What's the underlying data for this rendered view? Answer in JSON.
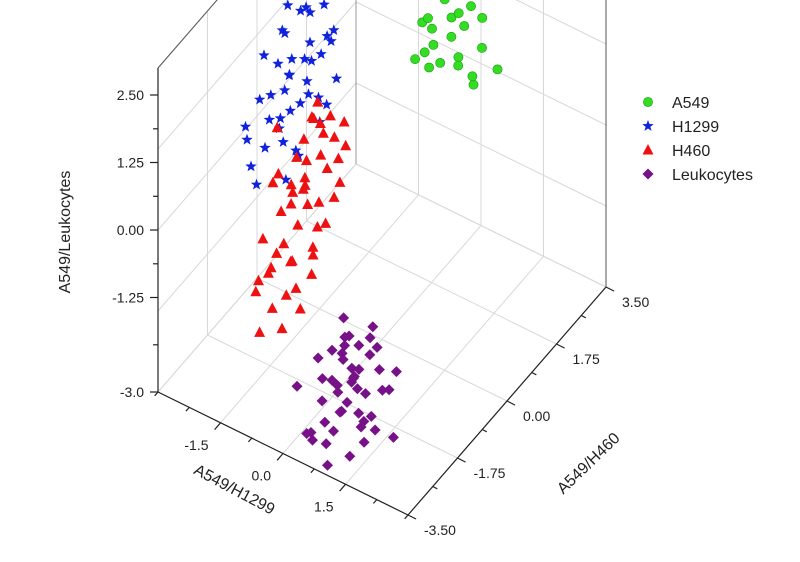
{
  "chart_data": {
    "type": "scatter",
    "projection": "3d",
    "title": "",
    "xlabel": "A549/H1299",
    "ylabel": "A549/H460",
    "zlabel": "A549/Leukocytes",
    "xlim": [
      -3.0,
      3.0
    ],
    "ylim": [
      -3.5,
      3.5
    ],
    "zlim": [
      -3.0,
      3.0
    ],
    "x_ticks": [
      "-1.5",
      "0.0",
      "1.5"
    ],
    "y_ticks": [
      "-3.50",
      "-1.75",
      "0.00",
      "1.75",
      "3.50"
    ],
    "z_ticks": [
      "-3.0",
      "-1.25",
      "0.00",
      "1.25",
      "2.50"
    ],
    "grid": true,
    "legend_position": "right",
    "series": [
      {
        "name": "A549",
        "marker": "circle",
        "color": "#33dd22",
        "points": [
          [
            -0.8,
            3.2,
            1.4
          ],
          [
            -0.7,
            3.3,
            1.6
          ],
          [
            -0.9,
            3.0,
            1.3
          ],
          [
            -0.6,
            3.1,
            1.2
          ],
          [
            -0.5,
            3.0,
            1.5
          ],
          [
            -0.3,
            2.9,
            1.1
          ],
          [
            -0.4,
            3.3,
            0.9
          ],
          [
            -0.7,
            2.8,
            0.8
          ],
          [
            -0.8,
            2.6,
            1.0
          ],
          [
            -1.0,
            3.1,
            0.7
          ],
          [
            -0.6,
            2.7,
            0.6
          ],
          [
            -0.2,
            3.2,
            0.8
          ],
          [
            0.1,
            3.0,
            1.4
          ],
          [
            0.3,
            3.1,
            1.2
          ],
          [
            0.5,
            2.8,
            0.9
          ],
          [
            -0.9,
            2.9,
            1.7
          ],
          [
            0.0,
            2.7,
            0.6
          ],
          [
            0.4,
            3.3,
            1.8
          ],
          [
            -0.3,
            2.5,
            0.5
          ],
          [
            -0.1,
            2.6,
            1.0
          ],
          [
            0.2,
            2.4,
            0.7
          ],
          [
            -0.5,
            2.4,
            0.4
          ],
          [
            0.6,
            3.2,
            0.3
          ],
          [
            -0.7,
            2.2,
            0.6
          ],
          [
            -0.4,
            2.1,
            0.9
          ],
          [
            0.5,
            2.5,
            0.4
          ],
          [
            0.2,
            2.9,
            0.2
          ]
        ]
      },
      {
        "name": "H1299",
        "marker": "star",
        "color": "#1122dd",
        "points": [
          [
            -2.4,
            0.9,
            2.5
          ],
          [
            -2.6,
            0.5,
            1.9
          ],
          [
            -2.2,
            0.7,
            1.8
          ],
          [
            -2.0,
            0.4,
            1.5
          ],
          [
            -2.8,
            0.6,
            1.3
          ],
          [
            -2.5,
            1.0,
            1.6
          ],
          [
            -2.3,
            0.2,
            1.2
          ],
          [
            -2.1,
            0.6,
            1.0
          ],
          [
            -2.7,
            0.3,
            0.9
          ],
          [
            -2.4,
            0.8,
            0.8
          ],
          [
            -2.9,
            0.1,
            1.1
          ],
          [
            -2.0,
            0.9,
            1.9
          ],
          [
            -1.8,
            0.5,
            1.3
          ],
          [
            -1.9,
            0.2,
            0.7
          ],
          [
            -2.6,
            -0.1,
            0.6
          ],
          [
            -2.2,
            0.0,
            0.4
          ],
          [
            -2.5,
            -0.3,
            0.3
          ],
          [
            -2.8,
            -0.2,
            0.5
          ],
          [
            -2.1,
            -0.4,
            0.1
          ],
          [
            -1.7,
            0.3,
            0.2
          ],
          [
            -2.4,
            -0.6,
            0.0
          ],
          [
            -2.9,
            -0.5,
            -0.1
          ],
          [
            -2.0,
            -0.1,
            -0.2
          ],
          [
            -2.6,
            -0.8,
            -0.3
          ],
          [
            -1.9,
            -0.6,
            -0.4
          ],
          [
            -2.3,
            1.2,
            2.2
          ],
          [
            -2.0,
            1.1,
            2.0
          ],
          [
            -1.7,
            0.8,
            1.6
          ],
          [
            -2.7,
            1.1,
            1.4
          ],
          [
            -1.8,
            0.0,
            1.1
          ],
          [
            -2.2,
            -0.2,
            0.9
          ],
          [
            -2.5,
            0.4,
            0.7
          ],
          [
            -1.6,
            0.4,
            0.5
          ],
          [
            -2.0,
            0.7,
            0.3
          ],
          [
            -2.4,
            0.1,
            1.7
          ],
          [
            -1.9,
            1.0,
            1.2
          ],
          [
            -2.1,
            -0.5,
            0.6
          ],
          [
            -1.8,
            -0.3,
            -0.1
          ],
          [
            -2.3,
            0.5,
            0.2
          ],
          [
            -2.6,
            0.2,
            -0.2
          ],
          [
            -2.9,
            1.0,
            0.2
          ],
          [
            -2.8,
            -0.7,
            0.3
          ],
          [
            -2.2,
            1.3,
            1.0
          ],
          [
            -1.5,
            0.6,
            0.9
          ],
          [
            -2.4,
            -0.9,
            -0.5
          ]
        ]
      },
      {
        "name": "H460",
        "marker": "triangle",
        "color": "#ee1111",
        "points": [
          [
            -0.8,
            -1.0,
            1.3
          ],
          [
            -0.6,
            -0.8,
            1.0
          ],
          [
            -1.0,
            -0.6,
            0.8
          ],
          [
            -0.5,
            -1.2,
            0.7
          ],
          [
            -0.9,
            -1.4,
            0.5
          ],
          [
            -1.2,
            -0.9,
            0.4
          ],
          [
            -0.7,
            -1.6,
            0.2
          ],
          [
            -1.1,
            -1.1,
            0.1
          ],
          [
            -0.4,
            -0.9,
            0.3
          ],
          [
            -0.8,
            -1.8,
            -0.1
          ],
          [
            -1.3,
            -1.3,
            -0.2
          ],
          [
            -0.6,
            -1.4,
            -0.3
          ],
          [
            -1.0,
            -2.0,
            -0.4
          ],
          [
            -0.5,
            -1.7,
            -0.6
          ],
          [
            -1.4,
            -0.7,
            0.6
          ],
          [
            -0.3,
            -1.1,
            0.9
          ],
          [
            -0.9,
            -0.5,
            1.1
          ],
          [
            -1.2,
            -1.8,
            0.0
          ],
          [
            -0.7,
            -2.2,
            -0.5
          ],
          [
            -1.5,
            -1.0,
            -0.1
          ],
          [
            -0.4,
            -1.9,
            -0.8
          ],
          [
            -1.1,
            -2.3,
            -0.7
          ],
          [
            -0.6,
            -2.5,
            -0.9
          ],
          [
            -1.3,
            -2.1,
            -1.0
          ],
          [
            -0.2,
            -1.4,
            0.4
          ],
          [
            -1.6,
            -1.5,
            0.2
          ],
          [
            -0.8,
            -2.7,
            -1.1
          ],
          [
            -1.0,
            -0.8,
            1.5
          ],
          [
            -0.5,
            -0.6,
            1.2
          ],
          [
            -1.4,
            -1.6,
            0.5
          ],
          [
            -0.9,
            -2.4,
            -0.3
          ],
          [
            -0.3,
            -2.0,
            -0.2
          ],
          [
            -1.2,
            -2.6,
            -0.8
          ],
          [
            -0.7,
            -1.2,
            0.0
          ],
          [
            -1.5,
            -2.0,
            -0.5
          ],
          [
            -0.4,
            -2.3,
            -1.2
          ],
          [
            -1.1,
            -1.4,
            0.8
          ],
          [
            -0.6,
            -0.4,
            0.6
          ],
          [
            -1.3,
            -0.5,
            0.9
          ],
          [
            -0.8,
            -1.3,
            1.6
          ],
          [
            -1.7,
            -1.2,
            1.0
          ],
          [
            -0.5,
            -2.8,
            -1.3
          ],
          [
            -1.0,
            -1.7,
            -0.9
          ],
          [
            -1.4,
            -2.4,
            -1.2
          ],
          [
            -0.2,
            -1.7,
            0.1
          ],
          [
            -0.9,
            -3.0,
            -1.4
          ],
          [
            -1.2,
            -0.4,
            0.2
          ],
          [
            -0.6,
            -1.9,
            0.7
          ],
          [
            -1.6,
            -0.8,
            -0.4
          ],
          [
            -0.3,
            -2.6,
            -0.6
          ]
        ]
      },
      {
        "name": "Leukocytes",
        "marker": "diamond",
        "color": "#771188",
        "points": [
          [
            0.6,
            -2.2,
            -1.4
          ],
          [
            0.8,
            -2.0,
            -1.6
          ],
          [
            0.5,
            -2.5,
            -1.5
          ],
          [
            1.0,
            -1.8,
            -1.3
          ],
          [
            0.7,
            -2.8,
            -1.8
          ],
          [
            0.9,
            -2.4,
            -2.0
          ],
          [
            0.4,
            -2.0,
            -1.9
          ],
          [
            1.1,
            -2.6,
            -1.7
          ],
          [
            0.6,
            -3.0,
            -2.1
          ],
          [
            1.2,
            -2.2,
            -1.5
          ],
          [
            0.3,
            -2.7,
            -1.6
          ],
          [
            0.8,
            -3.2,
            -2.3
          ],
          [
            1.0,
            -2.9,
            -2.2
          ],
          [
            0.5,
            -2.3,
            -2.4
          ],
          [
            1.3,
            -2.5,
            -2.0
          ],
          [
            0.7,
            -1.9,
            -2.5
          ],
          [
            0.9,
            -3.3,
            -2.6
          ],
          [
            1.4,
            -2.8,
            -2.4
          ],
          [
            0.4,
            -3.1,
            -2.7
          ],
          [
            1.1,
            -2.0,
            -2.8
          ],
          [
            0.6,
            -2.6,
            -2.9
          ],
          [
            1.2,
            -3.0,
            -1.9
          ],
          [
            0.2,
            -2.4,
            -2.2
          ],
          [
            1.5,
            -2.3,
            -1.6
          ],
          [
            0.8,
            -1.6,
            -1.7
          ],
          [
            1.0,
            -3.4,
            -2.9
          ],
          [
            1.3,
            -1.9,
            -2.3
          ],
          [
            0.3,
            -1.8,
            -1.4
          ],
          [
            0.9,
            -2.7,
            -1.4
          ],
          [
            1.4,
            -3.2,
            -2.7
          ],
          [
            0.5,
            -3.4,
            -2.5
          ],
          [
            1.6,
            -2.6,
            -2.5
          ],
          [
            0.7,
            -2.1,
            -2.0
          ],
          [
            1.1,
            -3.2,
            -1.5
          ],
          [
            0.4,
            -1.6,
            -2.6
          ],
          [
            1.7,
            -2.1,
            -2.9
          ],
          [
            0.2,
            -3.3,
            -1.8
          ],
          [
            1.5,
            -1.7,
            -2.0
          ],
          [
            0.9,
            -1.5,
            -1.9
          ],
          [
            1.2,
            -2.4,
            -3.0
          ],
          [
            0.6,
            -1.7,
            -2.3
          ],
          [
            1.6,
            -3.0,
            -2.1
          ],
          [
            0.3,
            -2.9,
            -3.0
          ],
          [
            1.0,
            -2.3,
            -2.6
          ],
          [
            0.8,
            -2.5,
            -1.3
          ],
          [
            1.3,
            -3.4,
            -1.8
          ],
          [
            0.5,
            -1.9,
            -1.6
          ],
          [
            1.8,
            -2.4,
            -1.8
          ]
        ]
      }
    ]
  }
}
